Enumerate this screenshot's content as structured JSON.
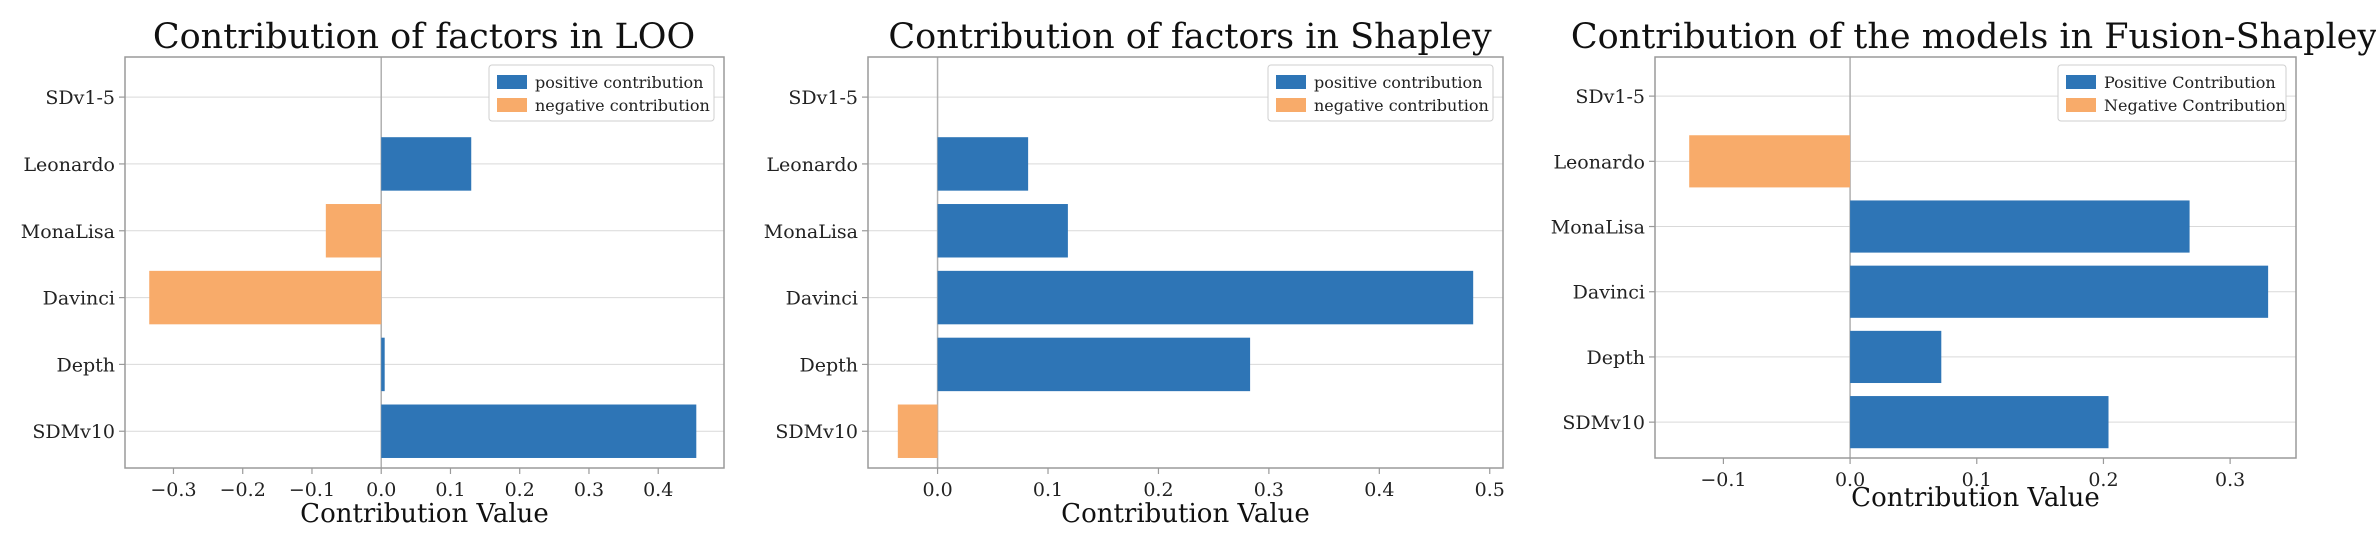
{
  "colors": {
    "positive": "#2e75b6",
    "negative": "#f8ab6a",
    "grid": "#d9d9d9",
    "axis": "#9a9a9a",
    "zero": "#b0b0b0"
  },
  "chart_data": [
    {
      "type": "bar",
      "orientation": "horizontal",
      "title": "Contribution of factors in LOO",
      "xlabel": "Contribution Value",
      "ylabel": "",
      "categories": [
        "SDv1-5",
        "Leonardo",
        "MonaLisa",
        "Davinci",
        "Depth",
        "SDMv10"
      ],
      "values": [
        0,
        0.13,
        -0.08,
        -0.335,
        0.005,
        0.455
      ],
      "xlim": [
        -0.37,
        0.495
      ],
      "xticks": [
        -0.3,
        -0.2,
        -0.1,
        0.0,
        0.1,
        0.2,
        0.3,
        0.4
      ],
      "xtick_labels": [
        "−0.3",
        "−0.2",
        "−0.1",
        "0.0",
        "0.1",
        "0.2",
        "0.3",
        "0.4"
      ],
      "grid": "horizontal",
      "legend": {
        "position": "top-right",
        "positive": "positive contribution",
        "negative": "negative contribution"
      }
    },
    {
      "type": "bar",
      "orientation": "horizontal",
      "title": "Contribution of factors in Shapley",
      "xlabel": "Contribution Value",
      "ylabel": "",
      "categories": [
        "SDv1-5",
        "Leonardo",
        "MonaLisa",
        "Davinci",
        "Depth",
        "SDMv10"
      ],
      "values": [
        0,
        0.082,
        0.118,
        0.485,
        0.283,
        -0.036
      ],
      "xlim": [
        -0.063,
        0.512
      ],
      "xticks": [
        0.0,
        0.1,
        0.2,
        0.3,
        0.4,
        0.5
      ],
      "xtick_labels": [
        "0.0",
        "0.1",
        "0.2",
        "0.3",
        "0.4",
        "0.5"
      ],
      "grid": "horizontal",
      "legend": {
        "position": "top-right",
        "positive": "positive contribution",
        "negative": "negative contribution"
      }
    },
    {
      "type": "bar",
      "orientation": "horizontal",
      "title": "Contribution of the models in Fusion-Shapley",
      "xlabel": "Contribution Value",
      "ylabel": "",
      "categories": [
        "SDv1-5",
        "Leonardo",
        "MonaLisa",
        "Davinci",
        "Depth",
        "SDMv10"
      ],
      "values": [
        0,
        -0.127,
        0.268,
        0.33,
        0.072,
        0.204
      ],
      "xlim": [
        -0.154,
        0.352
      ],
      "xticks": [
        -0.1,
        0.0,
        0.1,
        0.2,
        0.3
      ],
      "xtick_labels": [
        "−0.1",
        "0.0",
        "0.1",
        "0.2",
        "0.3"
      ],
      "grid": "horizontal",
      "legend": {
        "position": "top-right",
        "positive": "Positive Contribution",
        "negative": "Negative Contribution"
      }
    }
  ]
}
